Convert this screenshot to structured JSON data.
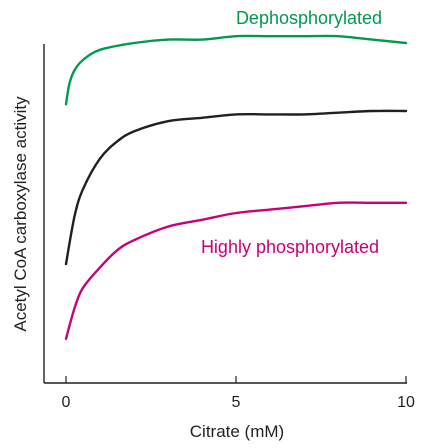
{
  "chart_data": {
    "type": "line",
    "xlabel": "Citrate (mM)",
    "ylabel": "Acetyl CoA carboxylase activity",
    "xlim": [
      0,
      10
    ],
    "ylim": [
      0,
      1
    ],
    "x_ticks": [
      0,
      5,
      10
    ],
    "y_ticks_labeled": false,
    "grid": false,
    "legend": "none",
    "series": [
      {
        "name": "Dephosphorylated",
        "color": "#009a4e",
        "x": [
          0,
          0.1,
          0.25,
          0.5,
          1,
          2,
          3,
          4,
          5,
          6,
          7,
          8,
          9,
          10
        ],
        "y": [
          0.82,
          0.88,
          0.92,
          0.95,
          0.98,
          1.0,
          1.01,
          1.01,
          1.02,
          1.02,
          1.02,
          1.02,
          1.01,
          1.0
        ]
      },
      {
        "name": "",
        "color": "#231f20",
        "x": [
          0,
          0.25,
          0.5,
          1,
          1.5,
          2,
          3,
          4,
          5,
          6,
          7,
          8,
          9,
          10
        ],
        "y": [
          0.35,
          0.49,
          0.57,
          0.66,
          0.71,
          0.74,
          0.77,
          0.78,
          0.79,
          0.79,
          0.79,
          0.795,
          0.8,
          0.8
        ]
      },
      {
        "name": "Highly phosphorylated",
        "color": "#c9007a",
        "x": [
          0,
          0.25,
          0.5,
          1,
          1.5,
          2,
          3,
          4,
          5,
          6,
          7,
          8,
          9,
          10
        ],
        "y": [
          0.13,
          0.22,
          0.28,
          0.34,
          0.39,
          0.42,
          0.46,
          0.48,
          0.5,
          0.51,
          0.52,
          0.53,
          0.53,
          0.53
        ]
      }
    ]
  }
}
